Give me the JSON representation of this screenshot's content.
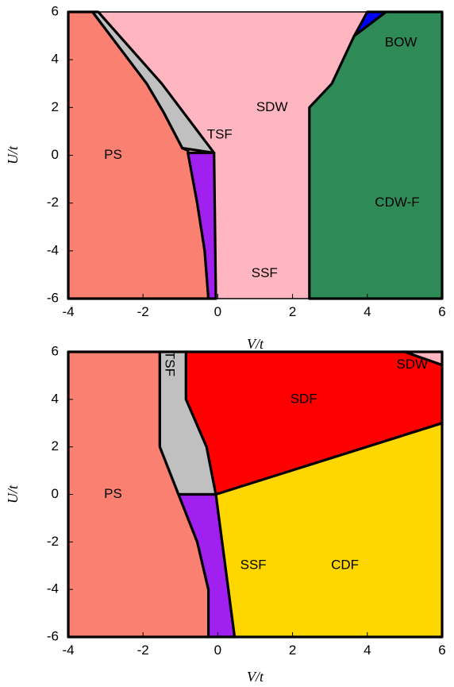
{
  "chart_data": [
    {
      "type": "area",
      "title": "",
      "xlabel": "V/t",
      "ylabel": "U/t",
      "xlim": [
        -4,
        6
      ],
      "ylim": [
        -6,
        6
      ],
      "xticks": [
        "-4",
        "-2",
        "0",
        "2",
        "4",
        "6"
      ],
      "yticks": [
        "-6",
        "-4",
        "-2",
        "0",
        "2",
        "4",
        "6"
      ],
      "grid": false,
      "regions": [
        {
          "name": "PS",
          "color": "#FA8072",
          "polygon": [
            [
              -4,
              -6
            ],
            [
              -0.25,
              -6
            ],
            [
              -0.35,
              -4
            ],
            [
              -0.55,
              -2
            ],
            [
              -0.8,
              0.2
            ],
            [
              -0.95,
              0.3
            ],
            [
              -1.45,
              1.8
            ],
            [
              -1.9,
              3
            ],
            [
              -3.35,
              6
            ],
            [
              -4,
              6
            ]
          ]
        },
        {
          "name": "TSF",
          "color": "#C0C0C0",
          "polygon": [
            [
              -3.35,
              6
            ],
            [
              -3.2,
              6
            ],
            [
              -1.5,
              3
            ],
            [
              -0.1,
              0.1
            ],
            [
              -0.95,
              0.3
            ],
            [
              -1.45,
              1.8
            ],
            [
              -1.9,
              3
            ]
          ]
        },
        {
          "name": "SSF",
          "color": "#A020F0",
          "polygon": [
            [
              -0.8,
              0.1
            ],
            [
              -0.1,
              0.1
            ],
            [
              -0.05,
              -6
            ],
            [
              -0.25,
              -6
            ],
            [
              -0.35,
              -4
            ],
            [
              -0.55,
              -2
            ]
          ]
        },
        {
          "name": "CDW-F",
          "color": "#2E8B57",
          "polygon": [
            [
              2.45,
              -6
            ],
            [
              6,
              -6
            ],
            [
              6,
              6
            ],
            [
              4.5,
              6
            ],
            [
              3.65,
              5
            ],
            [
              3.05,
              3
            ],
            [
              2.45,
              2
            ]
          ]
        },
        {
          "name": "BOW",
          "color": "#0000FF",
          "polygon": [
            [
              3.65,
              5
            ],
            [
              4,
              6
            ],
            [
              4.5,
              6
            ]
          ]
        }
      ],
      "background_region": {
        "name": "SDW",
        "color": "#FFB6C1"
      },
      "labels": [
        {
          "text": "PS",
          "x": -2.8,
          "y": 0
        },
        {
          "text": "TSF",
          "x": 0.05,
          "y": 0.85
        },
        {
          "text": "SDW",
          "x": 1.45,
          "y": 2
        },
        {
          "text": "BOW",
          "x": 4.9,
          "y": 4.7
        },
        {
          "text": "CDW-F",
          "x": 4.8,
          "y": -2
        },
        {
          "text": "SSF",
          "x": 1.25,
          "y": -4.95
        }
      ]
    },
    {
      "type": "area",
      "title": "",
      "xlabel": "V/t",
      "ylabel": "U/t",
      "xlim": [
        -4,
        6
      ],
      "ylim": [
        -6,
        6
      ],
      "xticks": [
        "-4",
        "-2",
        "0",
        "2",
        "4",
        "6"
      ],
      "yticks": [
        "-6",
        "-4",
        "-2",
        "0",
        "2",
        "4",
        "6"
      ],
      "grid": false,
      "regions": [
        {
          "name": "PS",
          "color": "#FA8072",
          "polygon": [
            [
              -4,
              -6
            ],
            [
              -0.25,
              -6
            ],
            [
              -0.25,
              -4
            ],
            [
              -0.55,
              -2
            ],
            [
              -1.05,
              0
            ],
            [
              -1.55,
              2
            ],
            [
              -1.55,
              6
            ],
            [
              -4,
              6
            ]
          ]
        },
        {
          "name": "TSF",
          "color": "#C0C0C0",
          "polygon": [
            [
              -1.55,
              6
            ],
            [
              -0.85,
              6
            ],
            [
              -0.85,
              4
            ],
            [
              -0.3,
              2
            ],
            [
              -0.05,
              0
            ],
            [
              -1.05,
              0
            ],
            [
              -1.55,
              2
            ]
          ]
        },
        {
          "name": "SDF",
          "color": "#FF0000",
          "polygon": [
            [
              -0.85,
              6
            ],
            [
              5,
              6
            ],
            [
              6,
              5.45
            ],
            [
              6,
              3
            ],
            [
              -0.05,
              0
            ],
            [
              -0.3,
              2
            ],
            [
              -0.85,
              4
            ]
          ]
        },
        {
          "name": "SDW",
          "color": "#FFB6C1",
          "polygon": [
            [
              5,
              6
            ],
            [
              6,
              6
            ],
            [
              6,
              5.45
            ]
          ]
        },
        {
          "name": "SSF",
          "color": "#A020F0",
          "polygon": [
            [
              -1.05,
              0
            ],
            [
              -0.05,
              0
            ],
            [
              0.45,
              -6
            ],
            [
              -0.25,
              -6
            ],
            [
              -0.25,
              -4
            ],
            [
              -0.55,
              -2
            ]
          ]
        },
        {
          "name": "CDF",
          "color": "#FFD700",
          "polygon": [
            [
              -0.05,
              0
            ],
            [
              6,
              3
            ],
            [
              6,
              -6
            ],
            [
              0.45,
              -6
            ]
          ]
        }
      ],
      "labels": [
        {
          "text": "PS",
          "x": -2.8,
          "y": 0
        },
        {
          "text": "TSF",
          "x": -1.3,
          "y": 5.5,
          "rotate": 90
        },
        {
          "text": "SDW",
          "x": 5.2,
          "y": 5.45
        },
        {
          "text": "SDF",
          "x": 2.3,
          "y": 4
        },
        {
          "text": "SSF",
          "x": 0.95,
          "y": -3
        },
        {
          "text": "CDF",
          "x": 3.4,
          "y": -3
        }
      ]
    }
  ]
}
